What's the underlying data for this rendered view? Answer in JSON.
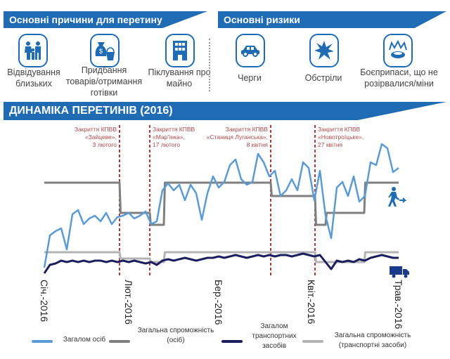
{
  "reasons": {
    "title": "Основні причини для перетину",
    "items": [
      {
        "label": "Відвідування близьких",
        "icon": "family-icon"
      },
      {
        "label": "Придбання товарів/отримання готівки",
        "icon": "money-bag-bucket-icon"
      },
      {
        "label": "Піклування про майно",
        "icon": "building-icon"
      }
    ]
  },
  "risks": {
    "title": "Основні ризики",
    "items": [
      {
        "label": "Черги",
        "icon": "car-icon"
      },
      {
        "label": "Обстріли",
        "icon": "explosion-icon"
      },
      {
        "label": "Боєприпаси, що не розірвалися/міни",
        "icon": "mine-icon"
      }
    ]
  },
  "dynamics_title": "ДИНАМІКА ПЕРЕТИНІВ (2016)",
  "colors": {
    "brand": "#1f6bb4",
    "people": "#5b9bd5",
    "people_capacity": "#7f7f7f",
    "vehicles": "#1c1f5e",
    "vehicle_capacity": "#b3b3b3",
    "closure": "#b03a3a"
  },
  "chart_data": {
    "type": "line",
    "title": "ДИНАМІКА ПЕРЕТИНІВ (2016)",
    "xlabel": "",
    "ylabel": "",
    "x_step_days": 2,
    "x_range": [
      0,
      126
    ],
    "ylim": [
      0,
      100
    ],
    "month_ticks": [
      {
        "day": 0,
        "label": "Січ.-2016"
      },
      {
        "day": 30,
        "label": "Лют.-2016"
      },
      {
        "day": 62,
        "label": "Бер.-2016"
      },
      {
        "day": 95,
        "label": "Квіт.-2016"
      },
      {
        "day": 126,
        "label": "Трав.-2016"
      }
    ],
    "closures": [
      {
        "day": 26.75,
        "lines": [
          "Закриття КПВВ",
          "«Зайцеве»,",
          "3 лютого"
        ],
        "align": "left"
      },
      {
        "day": 37.5,
        "lines": [
          "Закриття КПВВ",
          "«Мар'їнка»,",
          "17 лютого"
        ],
        "align": "right"
      },
      {
        "day": 80.5,
        "lines": [
          "Закриття КПВВ",
          "«Станиця Луганська»,",
          "8 квітня"
        ],
        "align": "left"
      },
      {
        "day": 96.25,
        "lines": [
          "Закриття КПВВ",
          "«Новотроїцьке»,",
          "27 квітня"
        ],
        "align": "right"
      }
    ],
    "series": [
      {
        "name": "Загалом осіб",
        "kind": "line",
        "values": [
          7,
          30,
          33,
          35,
          20,
          45,
          48,
          38,
          42,
          44,
          40,
          46,
          38,
          43,
          44,
          46,
          42,
          44,
          47,
          38,
          40,
          62,
          67,
          62,
          66,
          55,
          66,
          60,
          41,
          60,
          72,
          64,
          68,
          80,
          84,
          70,
          66,
          68,
          88,
          82,
          72,
          76,
          58,
          62,
          70,
          62,
          82,
          78,
          55,
          76,
          44,
          28,
          64,
          68,
          58,
          72,
          54,
          58,
          82,
          80,
          95,
          92,
          75,
          78
        ]
      },
      {
        "name": "Загальна спроможність (осіб)",
        "kind": "step",
        "steps": [
          [
            0,
            26.75,
            67.5
          ],
          [
            26.75,
            37.5,
            46
          ],
          [
            37.5,
            42.5,
            37.5
          ],
          [
            42.5,
            80.5,
            67.5
          ],
          [
            80.5,
            96.25,
            58
          ],
          [
            96.25,
            100,
            37.5
          ],
          [
            100,
            113.75,
            46
          ],
          [
            113.75,
            126,
            67.5
          ]
        ]
      },
      {
        "name": "Загалом транспортних засобів",
        "kind": "line",
        "values": [
          3,
          9,
          10,
          12,
          11,
          12,
          11,
          12,
          11,
          12,
          12,
          11,
          12,
          11,
          12,
          11,
          12,
          11,
          10,
          11,
          9,
          12,
          13,
          12,
          13,
          14,
          13,
          12,
          13,
          14,
          14,
          15,
          14,
          15,
          16,
          15,
          14,
          15,
          16,
          15,
          16,
          15,
          16,
          16,
          15,
          16,
          17,
          16,
          15,
          16,
          11,
          6,
          12,
          11,
          12,
          11,
          13,
          12,
          14,
          15,
          16,
          15,
          14,
          14
        ]
      },
      {
        "name": "Загальна спроможність (транспортні засоби)",
        "kind": "step",
        "steps": [
          [
            0,
            26.75,
            18
          ],
          [
            26.75,
            37.5,
            13.5
          ],
          [
            37.5,
            42.5,
            11
          ],
          [
            42.5,
            96.25,
            18
          ],
          [
            96.25,
            113.75,
            11
          ],
          [
            113.75,
            126,
            18
          ]
        ]
      }
    ],
    "legend": {
      "placement": "bottom",
      "entries": [
        "Загалом осіб",
        "Загальна спроможність (осіб)",
        "Загалом транспортних засобів",
        "Загальна спроможність (транспортні засоби)"
      ]
    }
  }
}
